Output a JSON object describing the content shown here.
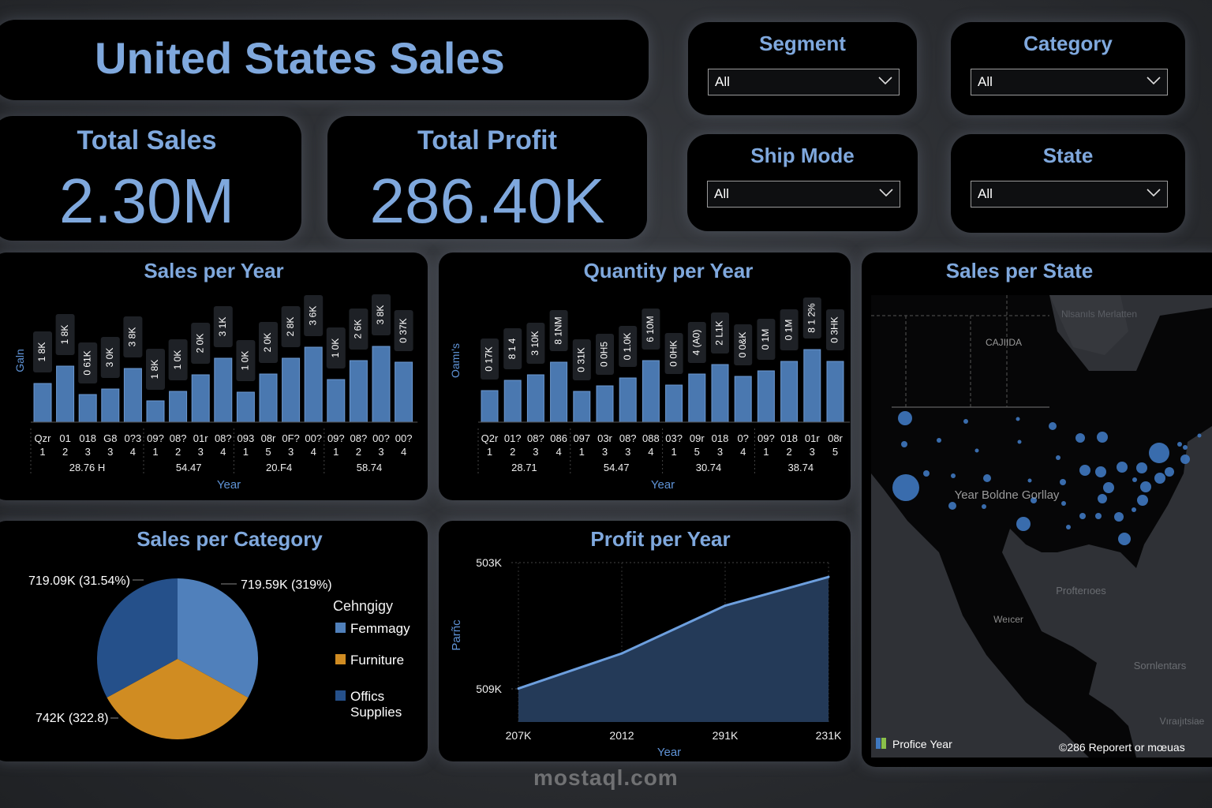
{
  "header": {
    "title": "United States Sales"
  },
  "kpis": {
    "total_sales": {
      "label": "Total Sales",
      "value": "2.30M"
    },
    "total_profit": {
      "label": "Total Profit",
      "value": "286.40K"
    }
  },
  "slicers": [
    {
      "title": "Segment",
      "selected": "All"
    },
    {
      "title": "Category",
      "selected": "All"
    },
    {
      "title": "Ship Mode",
      "selected": "All"
    },
    {
      "title": "State",
      "selected": "All"
    }
  ],
  "colors": {
    "accent": "#7fa8dd",
    "bar": "#4a78b0",
    "technology": "#5080bb",
    "furniture": "#d08c22",
    "office_supplies": "#25508a",
    "panel": "#000000",
    "map_bubble": "#3f78c0"
  },
  "chart_data": [
    {
      "id": "sales_per_year",
      "type": "bar",
      "title": "Sales per Year",
      "ylabel": "Galn",
      "xlabel": "Year",
      "grid": false,
      "values": [
        49,
        71,
        35,
        42,
        68,
        27,
        39,
        60,
        81,
        38,
        61,
        81,
        95,
        54,
        78,
        96,
        76
      ],
      "data_labels": [
        "1 8K",
        "1 8K",
        "0 61K",
        "3 0K",
        "3 8K",
        "1 8K",
        "1 0K",
        "2 0K",
        "3 1K",
        "1 0K",
        "2 0K",
        "2 8K",
        "3 6K",
        "1 0K",
        "2 6K",
        "3 8K",
        "0 37K"
      ],
      "tick_row1": [
        "Qzr",
        "01",
        "018",
        "G8",
        "0?3",
        "09?",
        "08?",
        "01r",
        "08?",
        "093",
        "08r",
        "0F?",
        "00?",
        "09?",
        "08?",
        "00?",
        "00?"
      ],
      "tick_row2": [
        "1",
        "2",
        "3",
        "3",
        "4",
        "1",
        "2",
        "3",
        "4",
        "1",
        "5",
        "3",
        "4",
        "1",
        "2",
        "3",
        "4"
      ],
      "groups": [
        {
          "label": "28.76 H",
          "count": 5
        },
        {
          "label": "54.47",
          "count": 4
        },
        {
          "label": "20.F4",
          "count": 4
        },
        {
          "label": "58.74",
          "count": 4
        }
      ]
    },
    {
      "id": "quantity_per_year",
      "type": "bar",
      "title": "Quantity per Year",
      "ylabel": "Oamı's",
      "xlabel": "Year",
      "grid": false,
      "values": [
        40,
        53,
        60,
        76,
        39,
        46,
        56,
        78,
        47,
        61,
        73,
        58,
        65,
        77,
        92,
        77
      ],
      "data_labels": [
        "0 17K",
        "8 1 4",
        "3 10K",
        "8 1NM",
        "0 31K",
        "0 0H5",
        "0 1.0K",
        "6 10M",
        "0 0HK",
        "4 (A0)",
        "2 L1K",
        "0 0&K",
        "0 1M",
        "0 1M",
        "8 1 2%",
        "0 3HK"
      ],
      "tick_row1": [
        "Q2r",
        "01?",
        "08?",
        "086",
        "097",
        "03r",
        "08?",
        "088",
        "03?",
        "09r",
        "018",
        "0?",
        "09?",
        "018",
        "01r",
        "08r"
      ],
      "tick_row2": [
        "1",
        "2",
        "3",
        "4",
        "1",
        "3",
        "3",
        "4",
        "1",
        "5",
        "3",
        "4",
        "1",
        "2",
        "3",
        "5"
      ],
      "groups": [
        {
          "label": "28.71",
          "count": 4
        },
        {
          "label": "54.47",
          "count": 4
        },
        {
          "label": "30.74",
          "count": 4
        },
        {
          "label": "38.74",
          "count": 4
        }
      ]
    },
    {
      "id": "sales_per_category",
      "type": "pie",
      "title": "Sales per Category",
      "legend_title": "Cehngigy",
      "legend_position": "right",
      "slices": [
        {
          "name": "Femmagy",
          "value": 719.59,
          "label": "719.59K (319%)",
          "color": "#5080bb"
        },
        {
          "name": "Furniture",
          "value": 742,
          "label": "742K (322.8)",
          "color": "#d08c22"
        },
        {
          "name": "Offics Supplies",
          "value": 719.09,
          "label": "719.09K (31.54%)",
          "color": "#25508a"
        }
      ]
    },
    {
      "id": "profit_per_year",
      "type": "area",
      "title": "Profit per Year",
      "ylabel": "Parñc",
      "xlabel": "Year",
      "grid": true,
      "x": [
        "207K",
        "2012",
        "291K",
        "231K"
      ],
      "y_ticks": [
        "503K",
        "509K"
      ],
      "values": [
        0.21,
        0.43,
        0.73,
        0.91
      ],
      "ylim": [
        0,
        1
      ]
    }
  ],
  "map": {
    "title": "Sales per State",
    "labels": [
      "Nlsanıls Merlatten",
      "CAJIIDA",
      "Year Boldne Gorllay",
      "Profterıoes",
      "Weıcer",
      "Sornlentars",
      "Vıraıjıtsiae"
    ],
    "legend_label": "Proficе Year",
    "attribution": "©286 Reporert or mœuas"
  },
  "watermark": "mostaql.com"
}
